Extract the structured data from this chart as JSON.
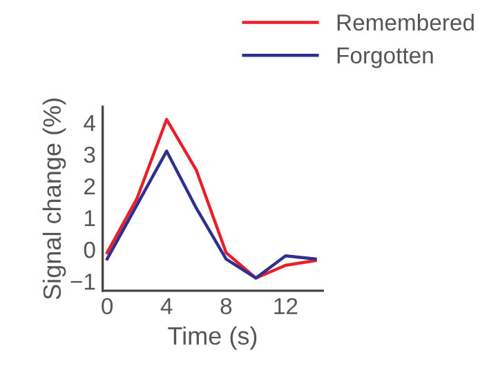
{
  "chart_data": {
    "type": "line",
    "xlabel": "Time (s)",
    "ylabel": "Signal change (%)",
    "x": [
      0,
      2,
      4,
      6,
      8,
      10,
      12,
      14
    ],
    "series": [
      {
        "name": "Remembered",
        "color": "#e8202a",
        "values": [
          -0.1,
          1.6,
          4.1,
          2.5,
          -0.1,
          -0.9,
          -0.5,
          -0.35
        ]
      },
      {
        "name": "Forgotten",
        "color": "#2e2f8f",
        "values": [
          -0.3,
          1.4,
          3.1,
          1.3,
          -0.3,
          -0.9,
          -0.2,
          -0.3
        ]
      }
    ],
    "xlim": [
      -0.3,
      14.5
    ],
    "ylim": [
      -1.3,
      4.5
    ],
    "xticks": [
      0,
      4,
      8,
      12
    ],
    "yticks": [
      -1,
      0,
      1,
      2,
      3,
      4
    ],
    "grid": false,
    "legend": "top right",
    "marker": "none",
    "line_style": "solid"
  }
}
